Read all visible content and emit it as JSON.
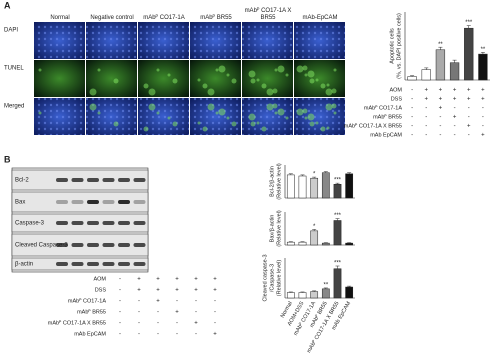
{
  "panel_a": {
    "label": "A",
    "columns": [
      "Normal",
      "Negative control",
      "mAbᴾ CO17-1A",
      "mAbᴾ BR55",
      "mAbᴾ CO17-1A X BR55",
      "mAb-EpCAM"
    ],
    "rows": [
      "DAPI",
      "TUNEL",
      "Merged"
    ],
    "chart": {
      "type": "bar",
      "y_label": [
        "Apoptotic cells",
        "(%, vs. DAPI positive cells)"
      ],
      "values": [
        4,
        12,
        35,
        20,
        60,
        30
      ],
      "errors": [
        1,
        2,
        3,
        3,
        3,
        2
      ],
      "significance": [
        null,
        null,
        "**",
        null,
        "***",
        "**"
      ],
      "colors": [
        "#ffffff",
        "#ffffff",
        "#aaaaaa",
        "#777777",
        "#444444",
        "#111111"
      ]
    },
    "conditions": [
      {
        "label": "AOM",
        "signs": [
          "-",
          "+",
          "+",
          "+",
          "+",
          "+"
        ]
      },
      {
        "label": "DSS",
        "signs": [
          "-",
          "+",
          "+",
          "+",
          "+",
          "+"
        ]
      },
      {
        "label": "mAbᴾ CO17-1A",
        "signs": [
          "-",
          "-",
          "+",
          "-",
          "-",
          "-"
        ]
      },
      {
        "label": "mAbᴾ BR55",
        "signs": [
          "-",
          "-",
          "-",
          "+",
          "-",
          "-"
        ]
      },
      {
        "label": "mAbᴾ CO17-1A X BR55",
        "signs": [
          "-",
          "-",
          "-",
          "-",
          "+",
          "-"
        ]
      },
      {
        "label": "mAb EpCAM",
        "signs": [
          "-",
          "-",
          "-",
          "-",
          "-",
          "+"
        ]
      }
    ]
  },
  "panel_b": {
    "label": "B",
    "blots": [
      "Bcl-2",
      "Bax",
      "Caspase-3",
      "Cleaved Caspase-3",
      "β-actin"
    ],
    "conditions": [
      {
        "label": "AOM",
        "signs": [
          "-",
          "+",
          "+",
          "+",
          "+",
          "+"
        ]
      },
      {
        "label": "DSS",
        "signs": [
          "-",
          "+",
          "+",
          "+",
          "+",
          "+"
        ]
      },
      {
        "label": "mAbᴾ CO17-1A",
        "signs": [
          "-",
          "-",
          "+",
          "-",
          "-",
          "-"
        ]
      },
      {
        "label": "mAbᴾ BR55",
        "signs": [
          "-",
          "-",
          "-",
          "+",
          "-",
          "-"
        ]
      },
      {
        "label": "mAbᴾ CO17-1A X BR55",
        "signs": [
          "-",
          "-",
          "-",
          "-",
          "+",
          "-"
        ]
      },
      {
        "label": "mAb EpCAM",
        "signs": [
          "-",
          "-",
          "-",
          "-",
          "-",
          "+"
        ]
      }
    ],
    "categories": [
      "Normal",
      "AOM+DSS",
      "mAbᴾ CO17-1A",
      "mAbᴾ BR55",
      "mAbᴾ CO17-1A X BR55",
      "mAb EpCAM"
    ],
    "charts": [
      {
        "type": "bar",
        "y_label": [
          "Bcl-2/β-actin",
          "(Relative level)"
        ],
        "values": [
          4.2,
          4.0,
          3.6,
          4.6,
          2.5,
          4.4
        ],
        "errors": [
          0.2,
          0.2,
          0.2,
          0.2,
          0.2,
          0.2
        ],
        "significance": [
          null,
          null,
          "*",
          null,
          "***",
          null
        ],
        "colors": [
          "#ffffff",
          "#ffffff",
          "#cccccc",
          "#888888",
          "#444444",
          "#111111"
        ]
      },
      {
        "type": "bar",
        "y_label": [
          "Bax/β-actin",
          "(Relative level)"
        ],
        "values": [
          0.3,
          0.3,
          1.5,
          0.2,
          2.6,
          0.2
        ],
        "errors": [
          0.05,
          0.05,
          0.15,
          0.05,
          0.2,
          0.05
        ],
        "significance": [
          null,
          null,
          "*",
          null,
          "***",
          null
        ],
        "colors": [
          "#ffffff",
          "#ffffff",
          "#cccccc",
          "#888888",
          "#444444",
          "#111111"
        ]
      },
      {
        "type": "bar",
        "y_label": [
          "Cleaved caspase-3",
          "/Caspase-3",
          "(Relative level)"
        ],
        "values": [
          0.3,
          0.3,
          0.35,
          0.5,
          1.6,
          0.6
        ],
        "errors": [
          0.03,
          0.03,
          0.04,
          0.05,
          0.15,
          0.05
        ],
        "significance": [
          null,
          null,
          null,
          "**",
          "***",
          null
        ],
        "colors": [
          "#ffffff",
          "#ffffff",
          "#cccccc",
          "#888888",
          "#444444",
          "#111111"
        ]
      }
    ]
  }
}
